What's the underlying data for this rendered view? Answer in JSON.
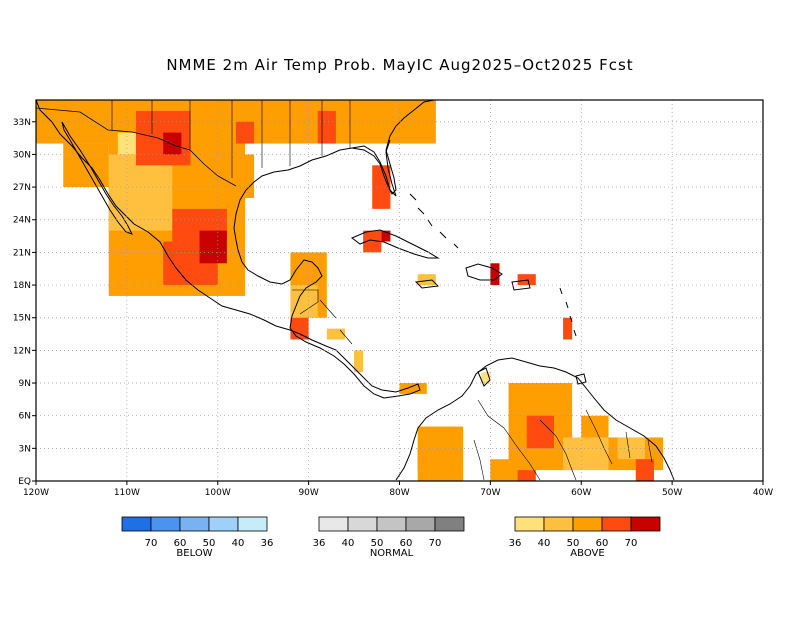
{
  "title": "NMME 2m Air Temp Prob. MayIC  Aug2025–Oct2025 Fcst",
  "map": {
    "lon_range": [
      -120,
      -40
    ],
    "lat_range": [
      0,
      35
    ],
    "lon_ticks": [
      {
        "value": -120,
        "label": "120W"
      },
      {
        "value": -110,
        "label": "110W"
      },
      {
        "value": -100,
        "label": "100W"
      },
      {
        "value": -90,
        "label": "90W"
      },
      {
        "value": -80,
        "label": "80W"
      },
      {
        "value": -70,
        "label": "70W"
      },
      {
        "value": -60,
        "label": "60W"
      },
      {
        "value": -50,
        "label": "50W"
      },
      {
        "value": -40,
        "label": "40W"
      }
    ],
    "lat_ticks": [
      {
        "value": 0,
        "label": "EQ"
      },
      {
        "value": 3,
        "label": "3N"
      },
      {
        "value": 6,
        "label": "6N"
      },
      {
        "value": 9,
        "label": "9N"
      },
      {
        "value": 12,
        "label": "12N"
      },
      {
        "value": 15,
        "label": "15N"
      },
      {
        "value": 18,
        "label": "18N"
      },
      {
        "value": 21,
        "label": "21N"
      },
      {
        "value": 24,
        "label": "24N"
      },
      {
        "value": 27,
        "label": "27N"
      },
      {
        "value": 30,
        "label": "30N"
      },
      {
        "value": 33,
        "label": "33N"
      }
    ],
    "grid": "dotted"
  },
  "legend": {
    "below": {
      "label": "BELOW",
      "colors": [
        "#1f6fe5",
        "#4a93ee",
        "#78b2f3",
        "#a0d0f8",
        "#c6ecf8"
      ],
      "ticks": [
        "70",
        "60",
        "50",
        "40",
        "36"
      ]
    },
    "normal": {
      "label": "NORMAL",
      "colors": [
        "#e8e8e8",
        "#d8d8d8",
        "#c4c4c4",
        "#a8a8a8",
        "#808080"
      ],
      "ticks": [
        "36",
        "40",
        "50",
        "60",
        "70"
      ]
    },
    "above": {
      "label": "ABOVE",
      "colors": [
        "#ffe17a",
        "#ffc040",
        "#ff9e00",
        "#ff4a10",
        "#c80000"
      ],
      "ticks": [
        "36",
        "40",
        "50",
        "60",
        "70"
      ]
    }
  },
  "probability_regions": [
    {
      "category": "above",
      "level": 2,
      "lon": [
        -120,
        -76
      ],
      "lat": [
        31,
        35
      ]
    },
    {
      "category": "above",
      "level": 2,
      "lon": [
        -117,
        -112
      ],
      "lat": [
        27,
        31
      ]
    },
    {
      "category": "above",
      "level": 2,
      "lon": [
        -112,
        -97
      ],
      "lat": [
        17,
        33
      ]
    },
    {
      "category": "above",
      "level": 1,
      "lon": [
        -112,
        -105
      ],
      "lat": [
        23,
        30
      ]
    },
    {
      "category": "above",
      "level": 0,
      "lon": [
        -111,
        -108
      ],
      "lat": [
        30,
        32
      ]
    },
    {
      "category": "above",
      "level": 3,
      "lon": [
        -109,
        -103
      ],
      "lat": [
        29,
        34
      ]
    },
    {
      "category": "above",
      "level": 3,
      "lon": [
        -105,
        -99
      ],
      "lat": [
        22,
        25
      ]
    },
    {
      "category": "above",
      "level": 3,
      "lon": [
        -106,
        -100
      ],
      "lat": [
        18,
        22
      ]
    },
    {
      "category": "above",
      "level": 4,
      "lon": [
        -102,
        -99
      ],
      "lat": [
        20,
        23
      ]
    },
    {
      "category": "above",
      "level": 4,
      "lon": [
        -106,
        -104
      ],
      "lat": [
        30,
        32
      ]
    },
    {
      "category": "above",
      "level": 3,
      "lon": [
        -98,
        -96
      ],
      "lat": [
        31,
        33
      ]
    },
    {
      "category": "above",
      "level": 3,
      "lon": [
        -89,
        -87
      ],
      "lat": [
        31,
        34
      ]
    },
    {
      "category": "above",
      "level": 3,
      "lon": [
        -83,
        -81
      ],
      "lat": [
        25,
        29
      ]
    },
    {
      "category": "above",
      "level": 2,
      "lon": [
        -98,
        -96
      ],
      "lat": [
        26,
        30
      ]
    },
    {
      "category": "above",
      "level": 2,
      "lon": [
        -92,
        -88
      ],
      "lat": [
        15,
        21
      ]
    },
    {
      "category": "above",
      "level": 1,
      "lon": [
        -92,
        -89
      ],
      "lat": [
        15,
        18
      ]
    },
    {
      "category": "above",
      "level": 3,
      "lon": [
        -92,
        -90
      ],
      "lat": [
        13,
        15
      ]
    },
    {
      "category": "above",
      "level": 1,
      "lon": [
        -88,
        -86
      ],
      "lat": [
        13,
        14
      ]
    },
    {
      "category": "above",
      "level": 1,
      "lon": [
        -85,
        -84
      ],
      "lat": [
        10,
        12
      ]
    },
    {
      "category": "above",
      "level": 2,
      "lon": [
        -80,
        -77
      ],
      "lat": [
        8,
        9
      ]
    },
    {
      "category": "above",
      "level": 3,
      "lon": [
        -84,
        -82
      ],
      "lat": [
        21,
        23
      ]
    },
    {
      "category": "above",
      "level": 4,
      "lon": [
        -82,
        -81
      ],
      "lat": [
        22,
        23
      ]
    },
    {
      "category": "above",
      "level": 1,
      "lon": [
        -78,
        -76
      ],
      "lat": [
        18,
        19
      ]
    },
    {
      "category": "above",
      "level": 4,
      "lon": [
        -70,
        -69
      ],
      "lat": [
        18,
        20
      ]
    },
    {
      "category": "above",
      "level": 3,
      "lon": [
        -67,
        -65
      ],
      "lat": [
        18,
        19
      ]
    },
    {
      "category": "above",
      "level": 3,
      "lon": [
        -62,
        -61
      ],
      "lat": [
        13,
        15
      ]
    },
    {
      "category": "above",
      "level": 3,
      "lon": [
        -78,
        -74
      ],
      "lat": [
        1,
        3
      ]
    },
    {
      "category": "above",
      "level": 2,
      "lon": [
        -78,
        -73
      ],
      "lat": [
        0,
        5
      ]
    },
    {
      "category": "above",
      "level": 0,
      "lon": [
        -71,
        -70
      ],
      "lat": [
        9,
        10
      ]
    },
    {
      "category": "above",
      "level": 2,
      "lon": [
        -68,
        -61
      ],
      "lat": [
        1,
        9
      ]
    },
    {
      "category": "above",
      "level": 3,
      "lon": [
        -66,
        -63
      ],
      "lat": [
        3,
        6
      ]
    },
    {
      "category": "above",
      "level": 1,
      "lon": [
        -62,
        -57
      ],
      "lat": [
        1,
        4
      ]
    },
    {
      "category": "above",
      "level": 2,
      "lon": [
        -57,
        -51
      ],
      "lat": [
        1,
        4
      ]
    },
    {
      "category": "above",
      "level": 1,
      "lon": [
        -56,
        -53
      ],
      "lat": [
        2,
        4
      ]
    },
    {
      "category": "above",
      "level": 3,
      "lon": [
        -54,
        -52
      ],
      "lat": [
        0,
        2
      ]
    },
    {
      "category": "above",
      "level": 2,
      "lon": [
        -70,
        -66
      ],
      "lat": [
        0,
        2
      ]
    },
    {
      "category": "above",
      "level": 3,
      "lon": [
        -67,
        -65
      ],
      "lat": [
        0,
        1
      ]
    },
    {
      "category": "above",
      "level": 2,
      "lon": [
        -60,
        -57
      ],
      "lat": [
        4,
        6
      ]
    }
  ]
}
